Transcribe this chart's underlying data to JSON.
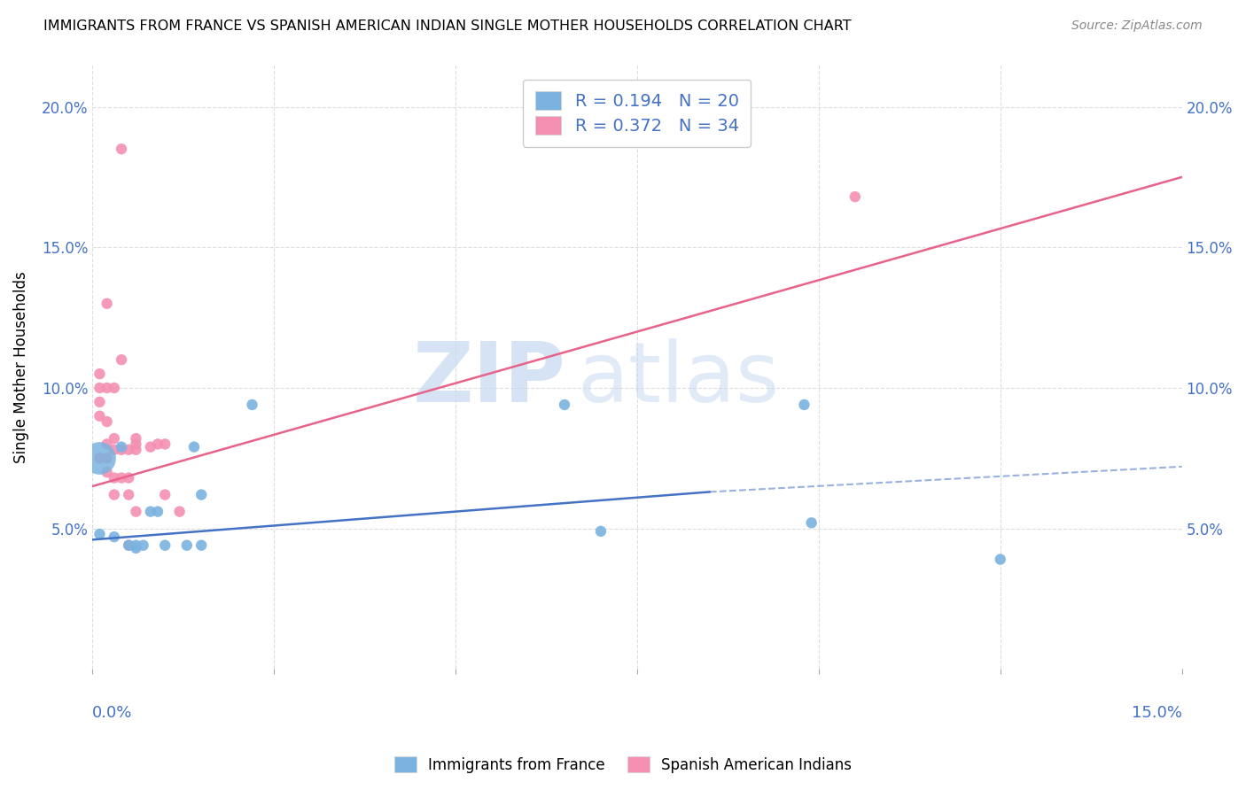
{
  "title": "IMMIGRANTS FROM FRANCE VS SPANISH AMERICAN INDIAN SINGLE MOTHER HOUSEHOLDS CORRELATION CHART",
  "source": "Source: ZipAtlas.com",
  "ylabel": "Single Mother Households",
  "xlim": [
    0.0,
    0.15
  ],
  "ylim": [
    0.0,
    0.215
  ],
  "yticks": [
    0.05,
    0.1,
    0.15,
    0.2
  ],
  "ytick_labels": [
    "5.0%",
    "10.0%",
    "15.0%",
    "20.0%"
  ],
  "blue_color": "#7ab3e0",
  "pink_color": "#f48fb1",
  "blue_line_color": "#4472c4",
  "pink_line_color": "#e8638a",
  "blue_scatter": [
    [
      0.001,
      0.048
    ],
    [
      0.003,
      0.047
    ],
    [
      0.004,
      0.079
    ],
    [
      0.005,
      0.044
    ],
    [
      0.006,
      0.044
    ],
    [
      0.006,
      0.043
    ],
    [
      0.007,
      0.044
    ],
    [
      0.008,
      0.056
    ],
    [
      0.009,
      0.056
    ],
    [
      0.01,
      0.044
    ],
    [
      0.013,
      0.044
    ],
    [
      0.014,
      0.079
    ],
    [
      0.015,
      0.044
    ],
    [
      0.015,
      0.062
    ],
    [
      0.022,
      0.094
    ],
    [
      0.065,
      0.094
    ],
    [
      0.07,
      0.049
    ],
    [
      0.098,
      0.094
    ],
    [
      0.099,
      0.052
    ],
    [
      0.125,
      0.039
    ]
  ],
  "blue_scatter_sizes": [
    80,
    80,
    80,
    80,
    80,
    80,
    80,
    80,
    80,
    80,
    80,
    80,
    80,
    80,
    80,
    80,
    80,
    80,
    80,
    80
  ],
  "blue_large_dot": [
    0.001,
    0.075
  ],
  "blue_large_size": 700,
  "pink_scatter": [
    [
      0.001,
      0.075
    ],
    [
      0.001,
      0.09
    ],
    [
      0.001,
      0.095
    ],
    [
      0.001,
      0.1
    ],
    [
      0.001,
      0.105
    ],
    [
      0.002,
      0.07
    ],
    [
      0.002,
      0.075
    ],
    [
      0.002,
      0.08
    ],
    [
      0.002,
      0.088
    ],
    [
      0.002,
      0.1
    ],
    [
      0.002,
      0.13
    ],
    [
      0.003,
      0.062
    ],
    [
      0.003,
      0.068
    ],
    [
      0.003,
      0.078
    ],
    [
      0.003,
      0.082
    ],
    [
      0.003,
      0.1
    ],
    [
      0.004,
      0.068
    ],
    [
      0.004,
      0.078
    ],
    [
      0.004,
      0.11
    ],
    [
      0.004,
      0.185
    ],
    [
      0.005,
      0.044
    ],
    [
      0.005,
      0.062
    ],
    [
      0.005,
      0.068
    ],
    [
      0.005,
      0.078
    ],
    [
      0.006,
      0.056
    ],
    [
      0.006,
      0.078
    ],
    [
      0.006,
      0.08
    ],
    [
      0.006,
      0.082
    ],
    [
      0.008,
      0.079
    ],
    [
      0.009,
      0.08
    ],
    [
      0.01,
      0.062
    ],
    [
      0.01,
      0.08
    ],
    [
      0.012,
      0.056
    ],
    [
      0.105,
      0.168
    ]
  ],
  "pink_scatter_sizes": [
    80,
    80,
    80,
    80,
    80,
    80,
    80,
    80,
    80,
    80,
    80,
    80,
    80,
    80,
    80,
    80,
    80,
    80,
    80,
    80,
    80,
    80,
    80,
    80,
    80,
    80,
    80,
    80,
    80,
    80,
    80,
    80,
    80,
    80
  ],
  "blue_trendline_solid": [
    [
      0.0,
      0.046
    ],
    [
      0.085,
      0.063
    ]
  ],
  "blue_trendline_dashed": [
    [
      0.085,
      0.063
    ],
    [
      0.15,
      0.072
    ]
  ],
  "pink_trendline": [
    [
      0.0,
      0.065
    ],
    [
      0.15,
      0.175
    ]
  ],
  "background_color": "#ffffff",
  "grid_color": "#dddddd"
}
